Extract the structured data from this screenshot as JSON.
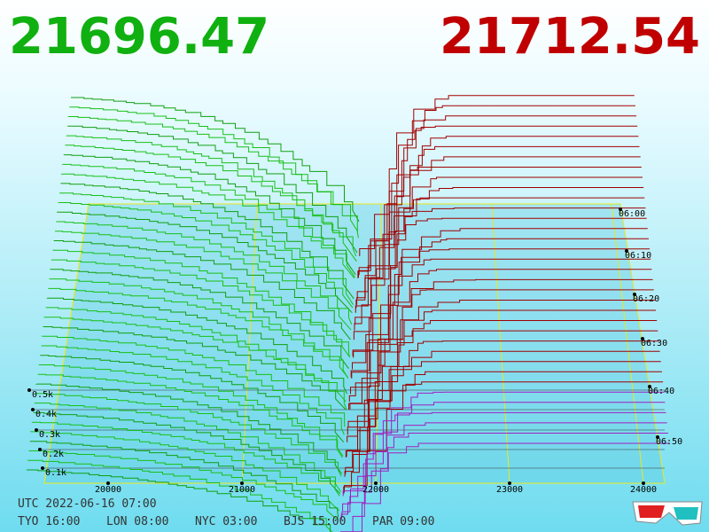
{
  "bid_price": "21696.47",
  "ask_price": "21712.54",
  "x_ticks": [
    "20000",
    "21000",
    "22000",
    "23000",
    "24000"
  ],
  "depth_ticks": [
    "0.5k",
    "0.4k",
    "0.3k",
    "0.2k",
    "0.1k"
  ],
  "time_ticks": [
    "06:00",
    "06:10",
    "06:20",
    "06:30",
    "06:40",
    "06:50"
  ],
  "footer": {
    "utc": "UTC 2022-06-16 07:00",
    "clocks": [
      "TYO 16:00",
      "LON 08:00",
      "NYC 03:00",
      "BJS 15:00",
      "PAR 09:00"
    ]
  }
}
